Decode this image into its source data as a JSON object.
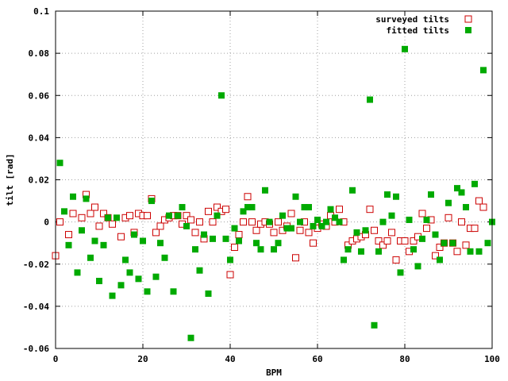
{
  "chart_data": {
    "type": "scatter",
    "title": "",
    "xlabel": "BPM",
    "ylabel": "tilt [rad]",
    "xlim": [
      0,
      100
    ],
    "ylim": [
      -0.06,
      0.1
    ],
    "x_ticks": [
      0,
      20,
      40,
      60,
      80,
      100
    ],
    "x_tick_labels": [
      "0",
      "20",
      "40",
      "60",
      "80",
      "100"
    ],
    "y_ticks": [
      -0.06,
      -0.04,
      -0.02,
      0,
      0.02,
      0.04,
      0.06,
      0.08,
      0.1
    ],
    "y_tick_labels": [
      "-0.06",
      "-0.04",
      "-0.02",
      "0",
      "0.02",
      "0.04",
      "0.06",
      "0.08",
      "0.1"
    ],
    "grid": true,
    "legend_position": "top-right",
    "series": [
      {
        "name": "surveyed tilts",
        "marker": "open-square",
        "color": "#cc0000",
        "points": [
          [
            0,
            -0.016
          ],
          [
            1,
            0.0
          ],
          [
            3,
            -0.006
          ],
          [
            4,
            0.004
          ],
          [
            6,
            0.002
          ],
          [
            7,
            0.013
          ],
          [
            8,
            0.004
          ],
          [
            9,
            0.007
          ],
          [
            10,
            -0.002
          ],
          [
            11,
            0.004
          ],
          [
            12,
            0.002
          ],
          [
            13,
            -0.001
          ],
          [
            15,
            -0.007
          ],
          [
            16,
            0.002
          ],
          [
            17,
            0.003
          ],
          [
            18,
            -0.005
          ],
          [
            19,
            0.004
          ],
          [
            20,
            0.003
          ],
          [
            21,
            0.003
          ],
          [
            22,
            0.011
          ],
          [
            23,
            -0.005
          ],
          [
            24,
            -0.002
          ],
          [
            25,
            0.001
          ],
          [
            26,
            0.002
          ],
          [
            27,
            0.003
          ],
          [
            28,
            0.003
          ],
          [
            29,
            -0.001
          ],
          [
            30,
            0.003
          ],
          [
            31,
            0.001
          ],
          [
            32,
            -0.005
          ],
          [
            33,
            0.0
          ],
          [
            34,
            -0.008
          ],
          [
            35,
            0.005
          ],
          [
            36,
            0.0
          ],
          [
            37,
            0.007
          ],
          [
            38,
            0.005
          ],
          [
            39,
            0.006
          ],
          [
            40,
            -0.025
          ],
          [
            41,
            -0.012
          ],
          [
            42,
            -0.006
          ],
          [
            43,
            0.0
          ],
          [
            44,
            0.012
          ],
          [
            45,
            0.0
          ],
          [
            46,
            -0.004
          ],
          [
            47,
            -0.001
          ],
          [
            48,
            0.0
          ],
          [
            49,
            -0.001
          ],
          [
            50,
            -0.005
          ],
          [
            51,
            0.0
          ],
          [
            52,
            -0.004
          ],
          [
            53,
            -0.002
          ],
          [
            54,
            0.004
          ],
          [
            55,
            -0.017
          ],
          [
            56,
            -0.004
          ],
          [
            57,
            0.0
          ],
          [
            58,
            -0.005
          ],
          [
            59,
            -0.01
          ],
          [
            60,
            -0.003
          ],
          [
            61,
            -0.001
          ],
          [
            62,
            -0.002
          ],
          [
            63,
            0.003
          ],
          [
            64,
            0.0
          ],
          [
            65,
            0.006
          ],
          [
            66,
            0.0
          ],
          [
            67,
            -0.011
          ],
          [
            68,
            -0.009
          ],
          [
            69,
            -0.008
          ],
          [
            70,
            -0.007
          ],
          [
            71,
            -0.006
          ],
          [
            72,
            0.006
          ],
          [
            73,
            -0.004
          ],
          [
            74,
            -0.009
          ],
          [
            75,
            -0.011
          ],
          [
            76,
            -0.009
          ],
          [
            77,
            -0.005
          ],
          [
            78,
            -0.018
          ],
          [
            79,
            -0.009
          ],
          [
            80,
            -0.009
          ],
          [
            81,
            -0.014
          ],
          [
            82,
            -0.009
          ],
          [
            83,
            -0.007
          ],
          [
            84,
            0.004
          ],
          [
            85,
            -0.003
          ],
          [
            86,
            0.001
          ],
          [
            87,
            -0.016
          ],
          [
            88,
            -0.012
          ],
          [
            89,
            -0.01
          ],
          [
            90,
            0.002
          ],
          [
            91,
            -0.01
          ],
          [
            92,
            -0.014
          ],
          [
            93,
            0.0
          ],
          [
            94,
            -0.011
          ],
          [
            95,
            -0.003
          ],
          [
            96,
            -0.003
          ],
          [
            97,
            0.01
          ],
          [
            98,
            0.007
          ]
        ]
      },
      {
        "name": "fitted tilts",
        "marker": "filled-square",
        "color": "#00aa00",
        "points": [
          [
            1,
            0.028
          ],
          [
            2,
            0.005
          ],
          [
            3,
            -0.011
          ],
          [
            4,
            0.012
          ],
          [
            5,
            -0.024
          ],
          [
            6,
            -0.004
          ],
          [
            7,
            0.011
          ],
          [
            8,
            -0.017
          ],
          [
            9,
            -0.009
          ],
          [
            10,
            -0.028
          ],
          [
            11,
            -0.011
          ],
          [
            12,
            0.002
          ],
          [
            13,
            -0.035
          ],
          [
            14,
            0.002
          ],
          [
            15,
            -0.03
          ],
          [
            16,
            -0.018
          ],
          [
            17,
            -0.024
          ],
          [
            18,
            -0.006
          ],
          [
            19,
            -0.027
          ],
          [
            20,
            -0.009
          ],
          [
            21,
            -0.033
          ],
          [
            22,
            0.01
          ],
          [
            23,
            -0.026
          ],
          [
            24,
            -0.01
          ],
          [
            25,
            -0.017
          ],
          [
            26,
            0.003
          ],
          [
            27,
            -0.033
          ],
          [
            28,
            0.003
          ],
          [
            29,
            0.007
          ],
          [
            30,
            -0.002
          ],
          [
            31,
            -0.055
          ],
          [
            32,
            -0.013
          ],
          [
            33,
            -0.023
          ],
          [
            34,
            -0.006
          ],
          [
            35,
            -0.034
          ],
          [
            36,
            -0.008
          ],
          [
            37,
            0.003
          ],
          [
            38,
            0.06
          ],
          [
            39,
            -0.008
          ],
          [
            40,
            -0.018
          ],
          [
            41,
            -0.003
          ],
          [
            42,
            -0.009
          ],
          [
            43,
            0.005
          ],
          [
            44,
            0.007
          ],
          [
            45,
            0.007
          ],
          [
            46,
            -0.01
          ],
          [
            47,
            -0.013
          ],
          [
            48,
            0.015
          ],
          [
            49,
            0.0
          ],
          [
            50,
            -0.013
          ],
          [
            51,
            -0.01
          ],
          [
            52,
            0.003
          ],
          [
            53,
            -0.003
          ],
          [
            54,
            -0.003
          ],
          [
            55,
            0.012
          ],
          [
            56,
            0.0
          ],
          [
            57,
            0.007
          ],
          [
            58,
            0.007
          ],
          [
            59,
            -0.002
          ],
          [
            60,
            0.001
          ],
          [
            61,
            -0.002
          ],
          [
            62,
            0.0
          ],
          [
            63,
            0.006
          ],
          [
            64,
            0.002
          ],
          [
            65,
            0.0
          ],
          [
            66,
            -0.018
          ],
          [
            67,
            -0.013
          ],
          [
            68,
            0.015
          ],
          [
            69,
            -0.005
          ],
          [
            70,
            -0.014
          ],
          [
            71,
            -0.004
          ],
          [
            72,
            0.058
          ],
          [
            73,
            -0.049
          ],
          [
            74,
            -0.014
          ],
          [
            75,
            0.0
          ],
          [
            76,
            0.013
          ],
          [
            77,
            0.003
          ],
          [
            78,
            0.012
          ],
          [
            79,
            -0.024
          ],
          [
            80,
            0.082
          ],
          [
            81,
            0.001
          ],
          [
            82,
            -0.013
          ],
          [
            83,
            -0.021
          ],
          [
            84,
            -0.008
          ],
          [
            85,
            0.001
          ],
          [
            86,
            0.013
          ],
          [
            87,
            -0.006
          ],
          [
            88,
            -0.018
          ],
          [
            89,
            -0.01
          ],
          [
            90,
            0.009
          ],
          [
            91,
            -0.01
          ],
          [
            92,
            0.016
          ],
          [
            93,
            0.014
          ],
          [
            94,
            0.007
          ],
          [
            95,
            -0.014
          ],
          [
            96,
            0.018
          ],
          [
            97,
            -0.014
          ],
          [
            98,
            0.072
          ],
          [
            99,
            -0.01
          ],
          [
            100,
            0.0
          ]
        ]
      }
    ]
  }
}
